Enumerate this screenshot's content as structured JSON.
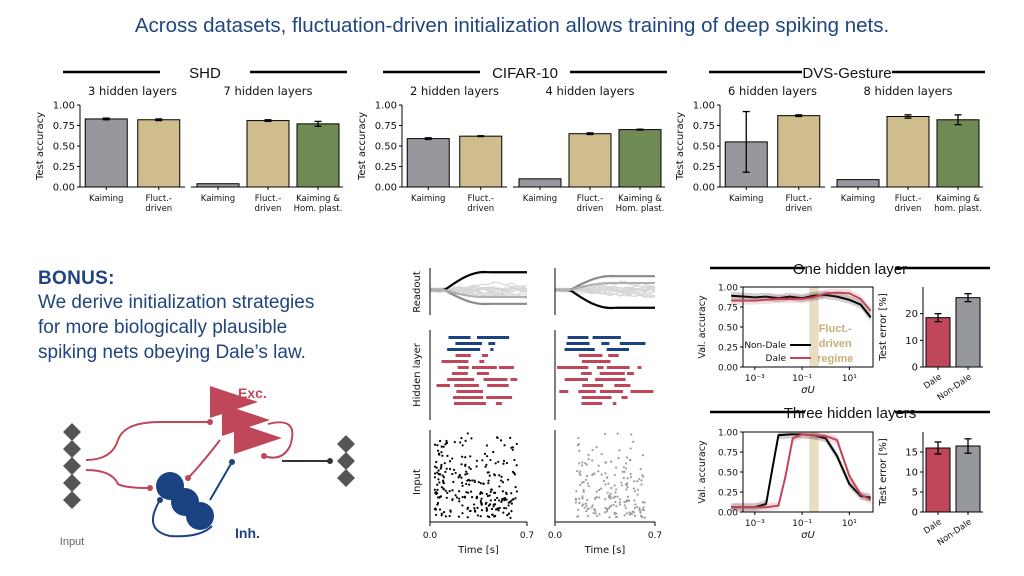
{
  "headline": "Across datasets, fluctuation-driven initialization allows training of deep spiking nets.",
  "colors": {
    "gray": "#97989d",
    "tan": "#d0bd8d",
    "green": "#6f8b53",
    "red": "#c0475a",
    "navy": "#1b4283",
    "regime": "#e8dcc2",
    "title": "#21457f"
  },
  "bonus": {
    "title": "BONUS:",
    "lines": [
      "We derive initialization strategies",
      "for more biologically plausible",
      "spiking nets obeying Dale’s law."
    ]
  },
  "diagram": {
    "exc_label": "Exc.",
    "inh_label": "Inh.",
    "input_label": "Input"
  },
  "chart_data": [
    {
      "type": "bar",
      "group": "SHD",
      "title": "3 hidden layers",
      "ylabel": "Test accuracy",
      "ylim": [
        0,
        1
      ],
      "yticks": [
        "0.00",
        "0.25",
        "0.50",
        "0.75",
        "1.00"
      ],
      "categories": [
        "Kaiming",
        "Fluct.-\ndriven"
      ],
      "values": [
        0.83,
        0.82
      ],
      "errors": [
        0.01,
        0.01
      ],
      "colors": [
        "gray",
        "tan"
      ]
    },
    {
      "type": "bar",
      "group": "SHD",
      "title": "7 hidden layers",
      "ylim": [
        0,
        1
      ],
      "categories": [
        "Kaiming",
        "Fluct.-\ndriven",
        "Kaiming &\nHom. plast."
      ],
      "values": [
        0.04,
        0.81,
        0.77
      ],
      "errors": [
        0,
        0.01,
        0.03
      ],
      "colors": [
        "gray",
        "tan",
        "green"
      ]
    },
    {
      "type": "bar",
      "group": "CIFAR-10",
      "title": "2 hidden layers",
      "ylabel": "Test accuracy",
      "ylim": [
        0,
        1
      ],
      "yticks": [
        "0.00",
        "0.25",
        "0.50",
        "0.75",
        "1.00"
      ],
      "categories": [
        "Kaiming",
        "Fluct.-\ndriven"
      ],
      "values": [
        0.59,
        0.62
      ],
      "errors": [
        0.01,
        0.005
      ],
      "colors": [
        "gray",
        "tan"
      ]
    },
    {
      "type": "bar",
      "group": "CIFAR-10",
      "title": "4 hidden layers",
      "ylim": [
        0,
        1
      ],
      "categories": [
        "Kaiming",
        "Fluct.-\ndriven",
        "Kaiming &\nHom. plast."
      ],
      "values": [
        0.1,
        0.65,
        0.7
      ],
      "errors": [
        0,
        0.01,
        0.005
      ],
      "colors": [
        "gray",
        "tan",
        "green"
      ]
    },
    {
      "type": "bar",
      "group": "DVS-Gesture",
      "title": "6 hidden layers",
      "ylabel": "Test accuracy",
      "ylim": [
        0,
        1
      ],
      "yticks": [
        "0.00",
        "0.25",
        "0.50",
        "0.75",
        "1.00"
      ],
      "categories": [
        "Kaiming",
        "Fluct.-\ndriven"
      ],
      "values": [
        0.55,
        0.87
      ],
      "errors": [
        0.37,
        0.01
      ],
      "colors": [
        "gray",
        "tan"
      ]
    },
    {
      "type": "bar",
      "group": "DVS-Gesture",
      "title": "8 hidden layers",
      "ylim": [
        0,
        1
      ],
      "categories": [
        "Kaiming",
        "Fluct.-\ndriven",
        "Kaiming &\nhom. plast."
      ],
      "values": [
        0.09,
        0.86,
        0.82
      ],
      "errors": [
        0,
        0.02,
        0.06
      ],
      "colors": [
        "gray",
        "tan",
        "green"
      ]
    },
    {
      "type": "line",
      "group": "One hidden layer",
      "ylabel": "Val. accuracy",
      "xlabel": "σU",
      "xscale": "log",
      "xticks": [
        "10⁻³",
        "10⁻¹",
        "10¹"
      ],
      "yticks": [
        "0.00",
        "0.25",
        "0.50",
        "0.75",
        "1.00"
      ],
      "ylim": [
        0,
        1
      ],
      "regime_label": "Fluct.-\ndriven\nregime",
      "regime_range": [
        0.2,
        0.5
      ],
      "series": [
        {
          "name": "Non-Dale",
          "color": "#000000",
          "points": [
            [
              0.0001,
              0.89
            ],
            [
              0.001,
              0.87
            ],
            [
              0.003,
              0.88
            ],
            [
              0.01,
              0.86
            ],
            [
              0.03,
              0.88
            ],
            [
              0.1,
              0.86
            ],
            [
              0.3,
              0.89
            ],
            [
              1,
              0.9
            ],
            [
              3,
              0.88
            ],
            [
              10,
              0.84
            ],
            [
              30,
              0.78
            ],
            [
              80,
              0.62
            ]
          ]
        },
        {
          "name": "Dale",
          "color": "#c0475a",
          "points": [
            [
              0.0001,
              0.83
            ],
            [
              0.001,
              0.83
            ],
            [
              0.003,
              0.84
            ],
            [
              0.01,
              0.85
            ],
            [
              0.03,
              0.85
            ],
            [
              0.1,
              0.85
            ],
            [
              0.3,
              0.87
            ],
            [
              1,
              0.92
            ],
            [
              3,
              0.93
            ],
            [
              10,
              0.92
            ],
            [
              30,
              0.85
            ],
            [
              80,
              0.7
            ]
          ]
        }
      ]
    },
    {
      "type": "bar",
      "group": "One hidden layer",
      "ylabel": "Test error [%]",
      "ylim": [
        0,
        30
      ],
      "yticks": [
        "0",
        "10",
        "20"
      ],
      "categories": [
        "Dale",
        "Non-Dale"
      ],
      "values": [
        18.5,
        26
      ],
      "errors": [
        1.5,
        1.5
      ],
      "colors": [
        "red",
        "gray"
      ]
    },
    {
      "type": "line",
      "group": "Three hidden layers",
      "ylabel": "Val. accuracy",
      "xlabel": "σU",
      "xscale": "log",
      "xticks": [
        "10⁻³",
        "10⁻¹",
        "10¹"
      ],
      "yticks": [
        "0.00",
        "0.25",
        "0.50",
        "0.75",
        "1.00"
      ],
      "ylim": [
        0,
        1
      ],
      "regime_range": [
        0.2,
        0.5
      ],
      "series": [
        {
          "name": "Non-Dale",
          "color": "#000000",
          "points": [
            [
              0.0001,
              0.06
            ],
            [
              0.001,
              0.06
            ],
            [
              0.003,
              0.1
            ],
            [
              0.006,
              0.6
            ],
            [
              0.01,
              0.96
            ],
            [
              0.03,
              0.97
            ],
            [
              0.1,
              0.97
            ],
            [
              0.3,
              0.96
            ],
            [
              1,
              0.92
            ],
            [
              3,
              0.7
            ],
            [
              10,
              0.35
            ],
            [
              30,
              0.2
            ],
            [
              80,
              0.18
            ]
          ]
        },
        {
          "name": "Dale",
          "color": "#c0475a",
          "points": [
            [
              0.0001,
              0.06
            ],
            [
              0.001,
              0.06
            ],
            [
              0.003,
              0.06
            ],
            [
              0.01,
              0.08
            ],
            [
              0.02,
              0.45
            ],
            [
              0.04,
              0.92
            ],
            [
              0.1,
              0.97
            ],
            [
              0.3,
              0.96
            ],
            [
              1,
              0.95
            ],
            [
              3,
              0.9
            ],
            [
              10,
              0.45
            ],
            [
              30,
              0.22
            ],
            [
              80,
              0.15
            ]
          ]
        }
      ]
    },
    {
      "type": "bar",
      "group": "Three hidden layers",
      "ylabel": "Test error [%]",
      "ylim": [
        0,
        20
      ],
      "yticks": [
        "0",
        "5",
        "10",
        "15"
      ],
      "categories": [
        "Dale",
        "Non-Dale"
      ],
      "values": [
        16,
        16.5
      ],
      "errors": [
        1.5,
        1.8
      ],
      "colors": [
        "red",
        "gray"
      ]
    }
  ],
  "datasets": [
    "SHD",
    "CIFAR-10",
    "DVS-Gesture"
  ],
  "dale_titles": [
    "One hidden layer",
    "Three hidden layers"
  ],
  "raster": {
    "row_labels": [
      "Readout",
      "Hidden layer",
      "Input"
    ],
    "x_label": "Time [s]",
    "x_ticks": [
      "0.0",
      "0.7"
    ]
  }
}
